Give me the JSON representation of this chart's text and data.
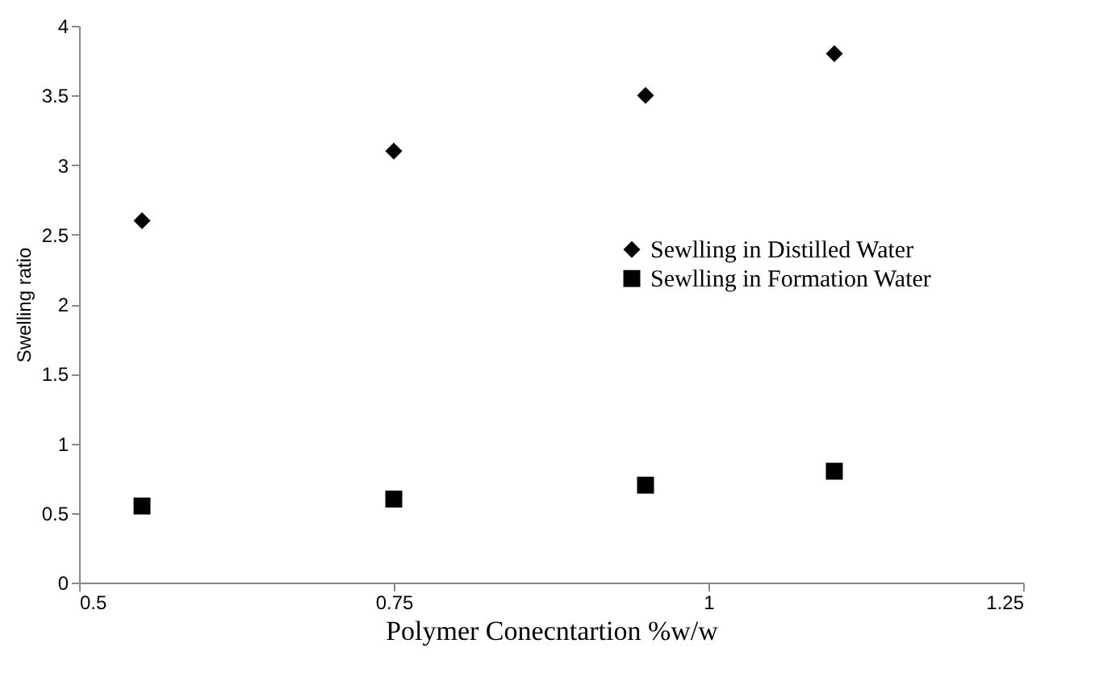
{
  "chart_data": {
    "type": "scatter",
    "xlabel": "Polymer Conecntartion %w/w",
    "ylabel": "Swelling ratio",
    "x": [
      0.55,
      0.75,
      0.95,
      1.1
    ],
    "series": [
      {
        "name": "Sewlling in Distilled Water",
        "color": "#000000",
        "marker": "diamond",
        "values": [
          2.6,
          3.1,
          3.5,
          3.8
        ]
      },
      {
        "name": "Sewlling in Formation Water",
        "color": "#000000",
        "marker": "square",
        "values": [
          0.55,
          0.6,
          0.7,
          0.8
        ]
      }
    ],
    "xlim": [
      0.5,
      1.25
    ],
    "xticks": [
      0.5,
      0.75,
      1,
      1.25
    ],
    "ylim": [
      0,
      4
    ],
    "yticks": [
      0,
      0.5,
      1,
      1.5,
      2,
      2.5,
      3,
      3.5,
      4
    ],
    "grid": false,
    "legend": "right"
  }
}
